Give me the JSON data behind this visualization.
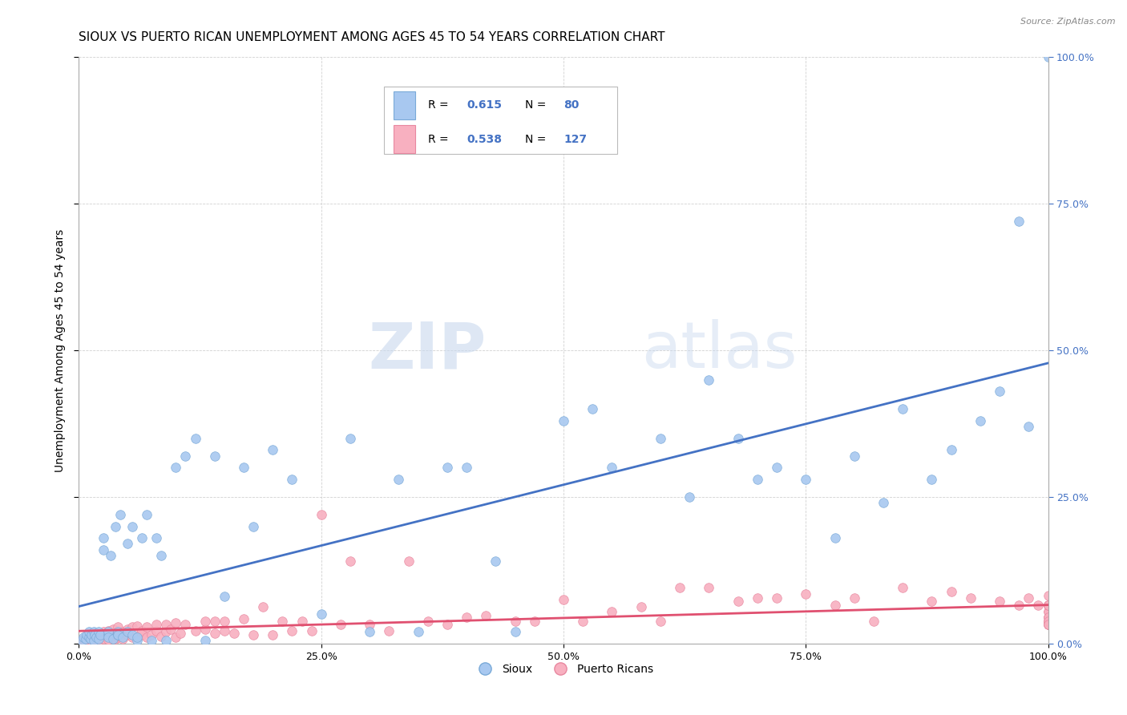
{
  "title": "SIOUX VS PUERTO RICAN UNEMPLOYMENT AMONG AGES 45 TO 54 YEARS CORRELATION CHART",
  "source": "Source: ZipAtlas.com",
  "ylabel": "Unemployment Among Ages 45 to 54 years",
  "xlim": [
    0,
    1
  ],
  "ylim": [
    0,
    1
  ],
  "xticks": [
    0,
    0.25,
    0.5,
    0.75,
    1.0
  ],
  "yticks": [
    0,
    0.25,
    0.5,
    0.75,
    1.0
  ],
  "xticklabels": [
    "0.0%",
    "25.0%",
    "50.0%",
    "75.0%",
    "100.0%"
  ],
  "yticklabels_right": [
    "0.0%",
    "25.0%",
    "50.0%",
    "75.0%",
    "100.0%"
  ],
  "background_color": "#ffffff",
  "watermark_zip": "ZIP",
  "watermark_atlas": "atlas",
  "sioux_color": "#a8c8f0",
  "sioux_edge": "#7aaad8",
  "pr_color": "#f8b0c0",
  "pr_edge": "#e888a0",
  "sioux_line_color": "#4472c4",
  "pr_line_color": "#e05070",
  "title_fontsize": 11,
  "axis_label_fontsize": 10,
  "tick_fontsize": 9,
  "right_tick_color": "#4472c4",
  "sioux_scatter_x": [
    0.003,
    0.005,
    0.007,
    0.008,
    0.01,
    0.01,
    0.012,
    0.013,
    0.015,
    0.015,
    0.016,
    0.018,
    0.02,
    0.02,
    0.022,
    0.025,
    0.025,
    0.03,
    0.03,
    0.03,
    0.033,
    0.035,
    0.038,
    0.04,
    0.04,
    0.04,
    0.043,
    0.045,
    0.05,
    0.05,
    0.055,
    0.055,
    0.06,
    0.06,
    0.065,
    0.07,
    0.075,
    0.08,
    0.085,
    0.09,
    0.1,
    0.11,
    0.12,
    0.13,
    0.14,
    0.15,
    0.17,
    0.18,
    0.2,
    0.22,
    0.25,
    0.28,
    0.3,
    0.33,
    0.35,
    0.38,
    0.4,
    0.43,
    0.45,
    0.5,
    0.53,
    0.55,
    0.6,
    0.63,
    0.65,
    0.68,
    0.7,
    0.72,
    0.75,
    0.78,
    0.8,
    0.83,
    0.85,
    0.88,
    0.9,
    0.93,
    0.95,
    0.97,
    0.98,
    1.0
  ],
  "sioux_scatter_y": [
    0.005,
    0.01,
    0.008,
    0.015,
    0.01,
    0.02,
    0.008,
    0.015,
    0.005,
    0.02,
    0.015,
    0.01,
    0.008,
    0.02,
    0.015,
    0.16,
    0.18,
    0.015,
    0.02,
    0.01,
    0.15,
    0.008,
    0.2,
    0.015,
    0.02,
    0.015,
    0.22,
    0.01,
    0.17,
    0.02,
    0.2,
    0.015,
    0.005,
    0.01,
    0.18,
    0.22,
    0.005,
    0.18,
    0.15,
    0.005,
    0.3,
    0.32,
    0.35,
    0.005,
    0.32,
    0.08,
    0.3,
    0.2,
    0.33,
    0.28,
    0.05,
    0.35,
    0.02,
    0.28,
    0.02,
    0.3,
    0.3,
    0.14,
    0.02,
    0.38,
    0.4,
    0.3,
    0.35,
    0.25,
    0.45,
    0.35,
    0.28,
    0.3,
    0.28,
    0.18,
    0.32,
    0.24,
    0.4,
    0.28,
    0.33,
    0.38,
    0.43,
    0.72,
    0.37,
    1.0
  ],
  "pr_scatter_x": [
    0.003,
    0.005,
    0.007,
    0.008,
    0.01,
    0.01,
    0.012,
    0.013,
    0.015,
    0.015,
    0.016,
    0.018,
    0.02,
    0.02,
    0.022,
    0.025,
    0.025,
    0.025,
    0.03,
    0.03,
    0.03,
    0.033,
    0.035,
    0.035,
    0.038,
    0.04,
    0.04,
    0.04,
    0.043,
    0.045,
    0.045,
    0.05,
    0.05,
    0.055,
    0.055,
    0.06,
    0.06,
    0.065,
    0.065,
    0.07,
    0.07,
    0.075,
    0.08,
    0.08,
    0.085,
    0.09,
    0.09,
    0.095,
    0.1,
    0.1,
    0.105,
    0.11,
    0.12,
    0.13,
    0.13,
    0.14,
    0.14,
    0.15,
    0.15,
    0.16,
    0.17,
    0.18,
    0.19,
    0.2,
    0.21,
    0.22,
    0.23,
    0.24,
    0.25,
    0.27,
    0.28,
    0.3,
    0.32,
    0.34,
    0.36,
    0.38,
    0.4,
    0.42,
    0.45,
    0.47,
    0.5,
    0.52,
    0.55,
    0.58,
    0.6,
    0.62,
    0.65,
    0.68,
    0.7,
    0.72,
    0.75,
    0.78,
    0.8,
    0.82,
    0.85,
    0.88,
    0.9,
    0.92,
    0.95,
    0.97,
    0.98,
    0.99,
    1.0,
    1.0,
    1.0,
    1.0,
    1.0,
    1.0,
    1.0,
    1.0,
    1.0,
    1.0,
    1.0,
    1.0,
    1.0,
    1.0,
    1.0,
    1.0,
    1.0,
    1.0,
    1.0,
    1.0,
    1.0
  ],
  "pr_scatter_y": [
    0.005,
    0.008,
    0.003,
    0.012,
    0.007,
    0.015,
    0.01,
    0.005,
    0.008,
    0.018,
    0.012,
    0.007,
    0.005,
    0.015,
    0.01,
    0.012,
    0.02,
    0.008,
    0.007,
    0.015,
    0.022,
    0.01,
    0.012,
    0.025,
    0.008,
    0.01,
    0.018,
    0.028,
    0.012,
    0.008,
    0.02,
    0.015,
    0.025,
    0.01,
    0.028,
    0.012,
    0.03,
    0.015,
    0.022,
    0.01,
    0.028,
    0.015,
    0.022,
    0.032,
    0.012,
    0.02,
    0.032,
    0.025,
    0.01,
    0.035,
    0.018,
    0.032,
    0.022,
    0.025,
    0.038,
    0.018,
    0.038,
    0.022,
    0.038,
    0.018,
    0.042,
    0.015,
    0.062,
    0.015,
    0.038,
    0.022,
    0.038,
    0.022,
    0.22,
    0.032,
    0.14,
    0.032,
    0.022,
    0.14,
    0.038,
    0.032,
    0.045,
    0.048,
    0.038,
    0.038,
    0.075,
    0.038,
    0.055,
    0.062,
    0.038,
    0.095,
    0.095,
    0.072,
    0.078,
    0.078,
    0.085,
    0.065,
    0.078,
    0.038,
    0.095,
    0.072,
    0.088,
    0.078,
    0.072,
    0.065,
    0.078,
    0.065,
    0.082,
    0.045,
    0.038,
    0.065,
    0.055,
    0.038,
    0.065,
    0.032,
    0.065,
    0.045,
    0.032,
    0.055,
    0.038,
    0.065,
    0.032,
    0.045,
    0.032,
    0.065,
    0.038,
    0.032,
    0.065
  ]
}
